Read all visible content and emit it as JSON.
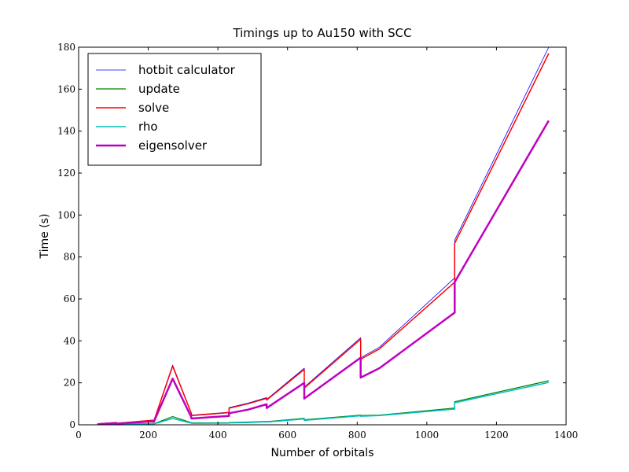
{
  "chart_data": {
    "type": "line",
    "title": "Timings up to Au150 with SCC",
    "xlabel": "Number of orbitals",
    "ylabel": "Time (s)",
    "xlim": [
      0,
      1400
    ],
    "ylim": [
      0,
      180
    ],
    "xticks": [
      0,
      200,
      400,
      600,
      800,
      1000,
      1200,
      1400
    ],
    "yticks": [
      0,
      20,
      40,
      60,
      80,
      100,
      120,
      140,
      160,
      180
    ],
    "grid": false,
    "legend_position": "upper-left",
    "series": [
      {
        "name": "hotbit calculator",
        "color": "#0000ff",
        "width": 0.8,
        "x": [
          54,
          108,
          108,
          216,
          216,
          270,
          324,
          324,
          432,
          432,
          486,
          540,
          540,
          648,
          648,
          810,
          810,
          864,
          1080,
          1080,
          1350
        ],
        "y": [
          0.4,
          1.1,
          0.7,
          2.3,
          1.9,
          28.5,
          5.5,
          4.6,
          6.0,
          8.2,
          10.3,
          13.0,
          12.1,
          27.0,
          18.0,
          41.5,
          32.0,
          37.0,
          70.0,
          88.0,
          180.0
        ]
      },
      {
        "name": "update",
        "color": "#008000",
        "width": 1.2,
        "x": [
          54,
          108,
          108,
          216,
          216,
          270,
          324,
          324,
          432,
          432,
          486,
          540,
          540,
          648,
          648,
          810,
          810,
          864,
          1080,
          1080,
          1350
        ],
        "y": [
          0.1,
          0.3,
          0.2,
          0.6,
          0.5,
          3.9,
          1.0,
          0.9,
          1.0,
          1.1,
          1.3,
          1.6,
          1.5,
          3.1,
          2.4,
          4.6,
          4.4,
          4.6,
          8.0,
          11.0,
          21.0
        ]
      },
      {
        "name": "solve",
        "color": "#ff0000",
        "width": 1.5,
        "x": [
          54,
          108,
          108,
          216,
          216,
          270,
          324,
          324,
          432,
          432,
          486,
          540,
          540,
          648,
          648,
          810,
          810,
          864,
          1080,
          1080,
          1350
        ],
        "y": [
          0.4,
          1.1,
          0.7,
          2.2,
          1.8,
          28.0,
          5.3,
          4.4,
          5.8,
          7.9,
          10.0,
          12.6,
          11.8,
          26.4,
          17.5,
          40.8,
          31.3,
          36.2,
          68.0,
          86.5,
          177.0
        ]
      },
      {
        "name": "rho",
        "color": "#00bfbf",
        "width": 1.5,
        "x": [
          54,
          108,
          108,
          216,
          216,
          270,
          324,
          324,
          432,
          432,
          486,
          540,
          540,
          648,
          648,
          810,
          810,
          864,
          1080,
          1080,
          1350
        ],
        "y": [
          0.1,
          0.3,
          0.2,
          0.5,
          0.4,
          3.0,
          0.8,
          0.7,
          0.8,
          0.9,
          1.1,
          1.4,
          1.3,
          2.8,
          2.1,
          4.3,
          4.1,
          4.4,
          7.5,
          10.5,
          20.2
        ]
      },
      {
        "name": "eigensolver",
        "color": "#bf00bf",
        "width": 2.5,
        "x": [
          54,
          108,
          108,
          216,
          216,
          270,
          324,
          324,
          432,
          432,
          486,
          540,
          540,
          648,
          648,
          810,
          810,
          864,
          1080,
          1080,
          1350
        ],
        "y": [
          0.3,
          0.8,
          0.5,
          1.7,
          1.4,
          22.0,
          3.5,
          3.0,
          4.2,
          5.5,
          7.2,
          9.8,
          8.0,
          20.0,
          12.5,
          32.0,
          22.5,
          27.0,
          53.5,
          68.0,
          145.0
        ]
      }
    ]
  }
}
